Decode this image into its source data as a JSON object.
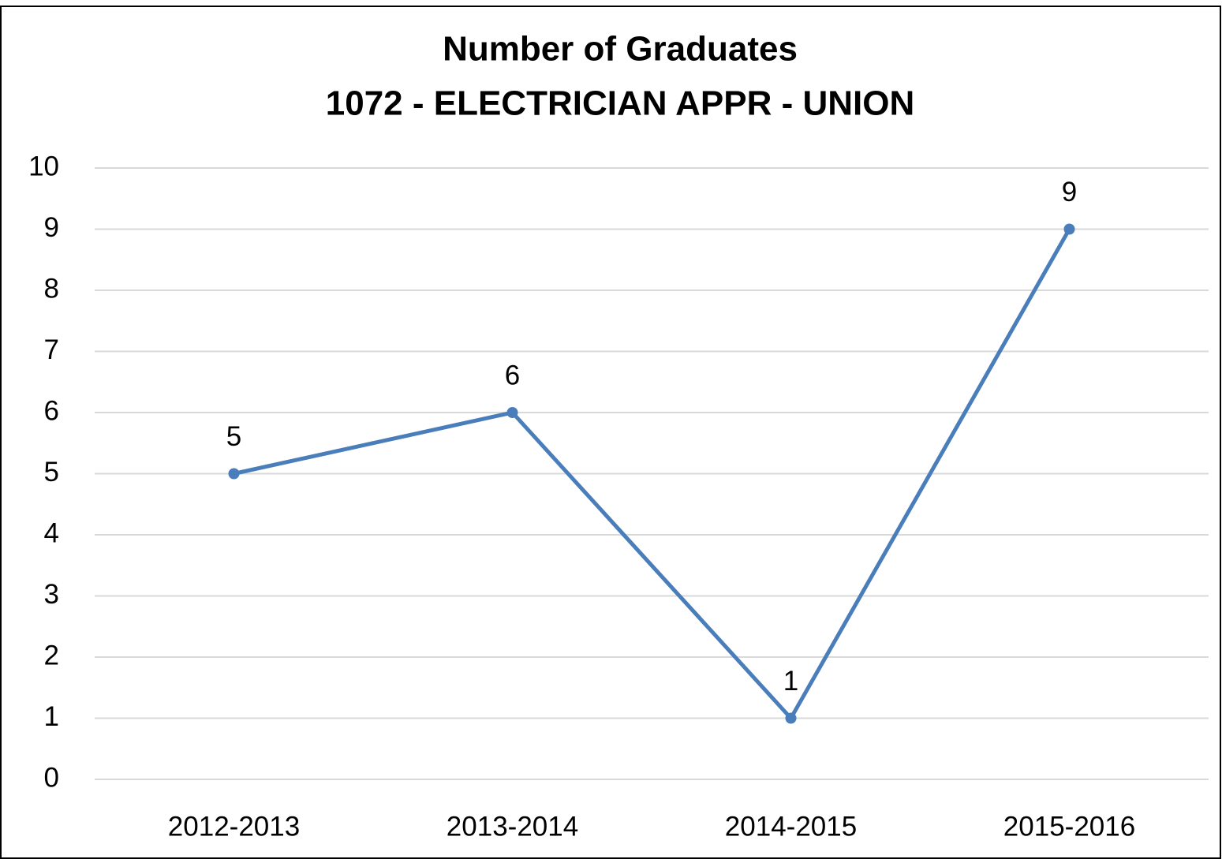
{
  "chart_data": {
    "type": "line",
    "title": [
      "Number of Graduates",
      "1072 - ELECTRICIAN APPR - UNION"
    ],
    "categories": [
      "2012-2013",
      "2013-2014",
      "2014-2015",
      "2015-2016"
    ],
    "series": [
      {
        "name": "Graduates",
        "color": "#4a7ebb",
        "values": [
          5,
          6,
          1,
          9
        ]
      }
    ],
    "ylim": [
      0,
      10
    ],
    "yticks": [
      0,
      1,
      2,
      3,
      4,
      5,
      6,
      7,
      8,
      9,
      10
    ],
    "grid": true,
    "data_labels": true
  }
}
